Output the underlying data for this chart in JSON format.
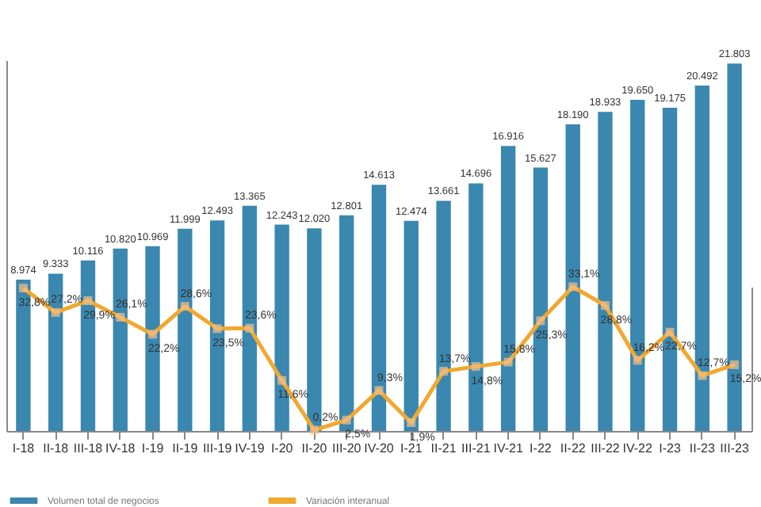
{
  "chart_data": {
    "type": "bar",
    "categories": [
      "I-18",
      "II-18",
      "III-18",
      "IV-18",
      "I-19",
      "II-19",
      "III-19",
      "IV-19",
      "I-20",
      "II-20",
      "III-20",
      "IV-20",
      "I-21",
      "II-21",
      "III-21",
      "IV-21",
      "I-22",
      "II-22",
      "III-22",
      "IV-22",
      "I-23",
      "II-23",
      "III-23"
    ],
    "series": [
      {
        "name": "Volumen total de negocios",
        "color": "#3a87b0",
        "values": [
          8974,
          9333,
          10116,
          10820,
          10969,
          11999,
          12493,
          13365,
          12243,
          12020,
          12801,
          14613,
          12474,
          13661,
          14696,
          16916,
          15627,
          18190,
          18933,
          19650,
          19175,
          20492,
          21803
        ],
        "value_labels": [
          "8.974",
          "9.333",
          "10.116",
          "10.820",
          "10.969",
          "11.999",
          "12.493",
          "13.365",
          "12.243",
          "12.020",
          "12.801",
          "14.613",
          "12.474",
          "13.661",
          "14.696",
          "16.916",
          "15.627",
          "18.190",
          "18.933",
          "19.650",
          "19.175",
          "20.492",
          "21.803"
        ]
      },
      {
        "name": "Variación interanual",
        "type": "line",
        "axis": "y2",
        "color": "#f0a830",
        "values": [
          32.8,
          27.2,
          29.9,
          26.1,
          22.2,
          28.6,
          23.5,
          23.6,
          11.6,
          0.2,
          2.5,
          9.3,
          1.9,
          13.7,
          14.8,
          15.8,
          25.3,
          33.1,
          28.8,
          16.2,
          22.7,
          12.7,
          15.2
        ],
        "value_labels": [
          "32,8%",
          "27,2%",
          "29,9%",
          "26,1%",
          "22,2%",
          "28,6%",
          "23,5%",
          "23,6%",
          "11,6%",
          "0,2%",
          "2,5%",
          "9,3%",
          "1,9%",
          "13,7%",
          "14,8%",
          "15,8%",
          "25,3%",
          "33,1%",
          "28,8%",
          "16,2%",
          "22,7%",
          "12,7%",
          "15,2%"
        ]
      }
    ],
    "tick_labels": "x",
    "marker": "square",
    "legend": "bottom"
  }
}
